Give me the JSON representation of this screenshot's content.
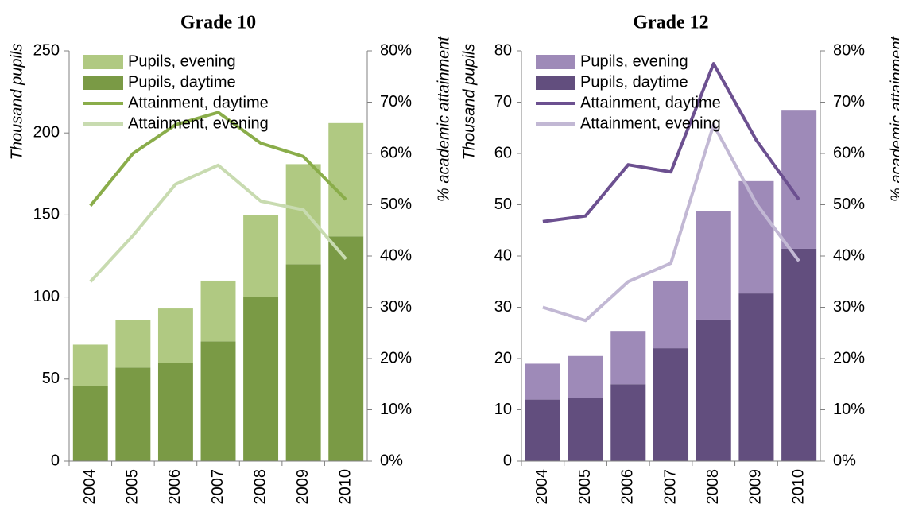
{
  "chart_data": [
    {
      "type": "bar",
      "title": "Grade 10",
      "y_label": "Thousand pupils",
      "y2_label": "% academic attainment",
      "categories": [
        "2004",
        "2005",
        "2006",
        "2007",
        "2008",
        "2009",
        "2010"
      ],
      "ylim": [
        0,
        250
      ],
      "yticks": [
        0,
        50,
        100,
        150,
        200,
        250
      ],
      "y2lim": [
        0,
        80
      ],
      "y2ticks": [
        {
          "value": 0,
          "label": "0%"
        },
        {
          "value": 10,
          "label": "10%"
        },
        {
          "value": 20,
          "label": "20%"
        },
        {
          "value": 30,
          "label": "30%"
        },
        {
          "value": 40,
          "label": "40%"
        },
        {
          "value": 50,
          "label": "50%"
        },
        {
          "value": 60,
          "label": "60%"
        },
        {
          "value": 70,
          "label": "70%"
        },
        {
          "value": 80,
          "label": "80%"
        }
      ],
      "legend": "upper left",
      "series": [
        {
          "name": "Pupils, evening",
          "type": "bar",
          "color": "#b0c982",
          "values": [
            25,
            29,
            33,
            37,
            50,
            61,
            69
          ]
        },
        {
          "name": "Pupils, daytime",
          "type": "bar",
          "color": "#7a9a45",
          "values": [
            46,
            57,
            60,
            73,
            100,
            120,
            137
          ]
        },
        {
          "name": "Attainment, daytime",
          "type": "line",
          "axis": "y2",
          "color": "#8aad4a",
          "values": [
            49.8,
            60,
            65.6,
            68,
            62,
            59.4,
            51
          ]
        },
        {
          "name": "Attainment, evening",
          "type": "line",
          "axis": "y2",
          "color": "#c8dbb0",
          "values": [
            35,
            44,
            54,
            57.7,
            50.7,
            49,
            39.4
          ]
        }
      ]
    },
    {
      "type": "bar",
      "title": "Grade 12",
      "y_label": "Thousand pupils",
      "y2_label": "% academic attainment",
      "categories": [
        "2004",
        "2005",
        "2006",
        "2007",
        "2008",
        "2009",
        "2010"
      ],
      "ylim": [
        0,
        80
      ],
      "yticks": [
        0,
        10,
        20,
        30,
        40,
        50,
        60,
        70,
        80
      ],
      "y2lim": [
        0,
        80
      ],
      "y2ticks": [
        {
          "value": 0,
          "label": "0%"
        },
        {
          "value": 10,
          "label": "10%"
        },
        {
          "value": 20,
          "label": "20%"
        },
        {
          "value": 30,
          "label": "30%"
        },
        {
          "value": 40,
          "label": "40%"
        },
        {
          "value": 50,
          "label": "50%"
        },
        {
          "value": 60,
          "label": "60%"
        },
        {
          "value": 70,
          "label": "70%"
        },
        {
          "value": 80,
          "label": "80%"
        }
      ],
      "legend": "upper left",
      "series": [
        {
          "name": "Pupils, evening",
          "type": "bar",
          "color": "#9e8ab8",
          "values": [
            7,
            8.1,
            10.4,
            13.2,
            21.1,
            21.9,
            27.1
          ]
        },
        {
          "name": "Pupils, daytime",
          "type": "bar",
          "color": "#624e7e",
          "values": [
            12,
            12.4,
            15,
            22,
            27.6,
            32.7,
            41.4
          ]
        },
        {
          "name": "Attainment, daytime",
          "type": "line",
          "axis": "y2",
          "color": "#6c5090",
          "values": [
            46.7,
            47.8,
            57.8,
            56.4,
            77.5,
            62.6,
            51
          ]
        },
        {
          "name": "Attainment, evening",
          "type": "line",
          "axis": "y2",
          "color": "#c2b8d4",
          "values": [
            30,
            27.4,
            35,
            38.6,
            65.6,
            50.2,
            39
          ]
        }
      ]
    }
  ]
}
